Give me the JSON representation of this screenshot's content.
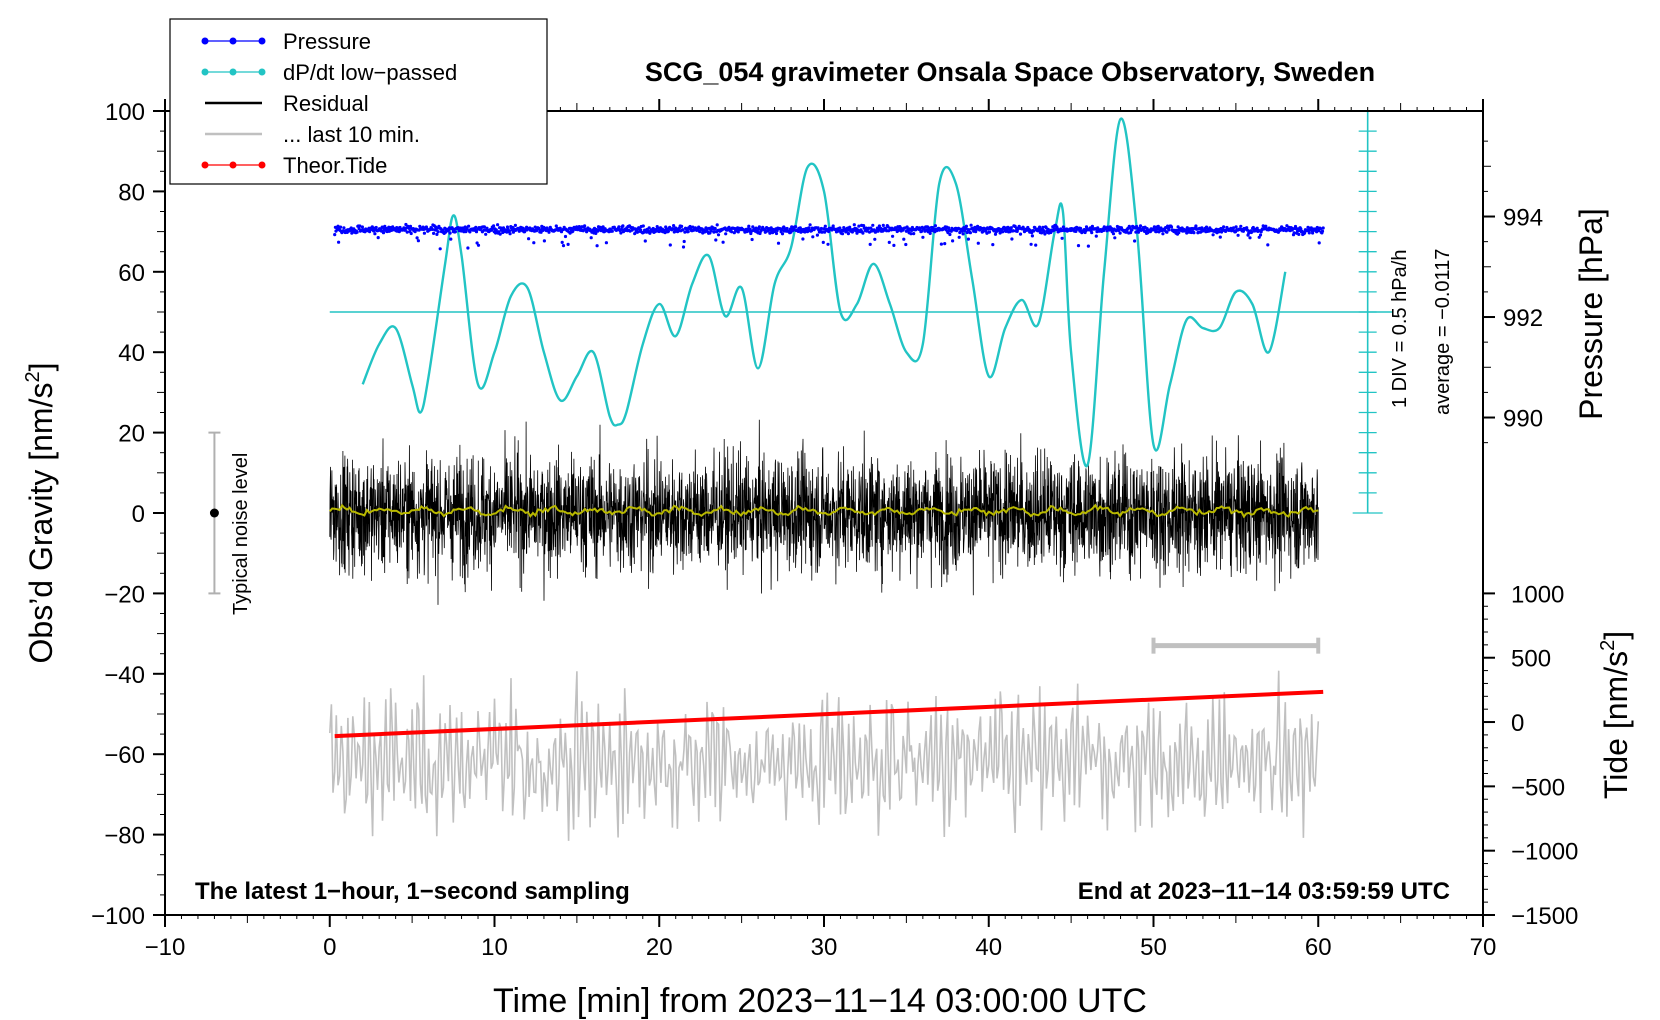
{
  "chart_data": {
    "type": "line",
    "title": "SCG_054 gravimeter Onsala Space Observatory, Sweden",
    "xlabel": "Time [min] from 2023−11−14 03:00:00 UTC",
    "ylabel_main": "Obs’d Gravity [nm/s",
    "ylabel_main_sup": "2",
    "ylabel_main_tail": "]",
    "ylabel_pressure": "Pressure [hPa]",
    "ylabel_tide": "Tide [nm/s",
    "ylabel_tide_sup": "2",
    "ylabel_tide_tail": "]",
    "xlim": [
      -10,
      70
    ],
    "ylim": [
      -100,
      100
    ],
    "x_ticks": [
      {
        "v": -10,
        "label": "−10"
      },
      {
        "v": 0,
        "label": "0"
      },
      {
        "v": 10,
        "label": "10"
      },
      {
        "v": 20,
        "label": "20"
      },
      {
        "v": 30,
        "label": "30"
      },
      {
        "v": 40,
        "label": "40"
      },
      {
        "v": 50,
        "label": "50"
      },
      {
        "v": 60,
        "label": "60"
      },
      {
        "v": 70,
        "label": "70"
      }
    ],
    "y_ticks": [
      {
        "v": 100,
        "label": "100"
      },
      {
        "v": 80,
        "label": "80"
      },
      {
        "v": 60,
        "label": "60"
      },
      {
        "v": 40,
        "label": "40"
      },
      {
        "v": 20,
        "label": "20"
      },
      {
        "v": 0,
        "label": "0"
      },
      {
        "v": -20,
        "label": "−20"
      },
      {
        "v": -40,
        "label": "−40"
      },
      {
        "v": -60,
        "label": "−60"
      },
      {
        "v": -80,
        "label": "−80"
      },
      {
        "v": -100,
        "label": "−100"
      }
    ],
    "pressure_ticks": [
      {
        "v": 994,
        "label": "994"
      },
      {
        "v": 992,
        "label": "992"
      },
      {
        "v": 990,
        "label": "990"
      }
    ],
    "pressure_axis": {
      "value_at_y60": 992.9,
      "hpa_per_y_unit": 0.08
    },
    "tide_ticks": [
      {
        "v": 1000,
        "label": "1000"
      },
      {
        "v": 500,
        "label": "500"
      },
      {
        "v": 0,
        "label": "0"
      },
      {
        "v": -500,
        "label": "−500"
      },
      {
        "v": -1000,
        "label": "−1000"
      },
      {
        "v": -1500,
        "label": "−1500"
      }
    ],
    "tide_axis": {
      "value_at_ym100": -1500,
      "value_at_ym20": 1000
    },
    "legend": {
      "position": "top-left",
      "entries": [
        {
          "label": "Pressure",
          "color": "#0000ff",
          "marker": true
        },
        {
          "label": "dP/dt low−passed",
          "color": "#22c4c4",
          "marker": true
        },
        {
          "label": "Residual",
          "color": "#000000",
          "marker": false
        },
        {
          "label": "... last 10 min.",
          "color": "#c0c0c0",
          "marker": false
        },
        {
          "label": "Theor.Tide",
          "color": "#ff0000",
          "marker": true
        }
      ]
    },
    "annotations": {
      "footer_left": "The latest 1−hour, 1−second sampling",
      "footer_right": "End at 2023−11−14 03:59:59 UTC",
      "noise_label": "Typical noise level",
      "div_label": "1 DIV = 0.5 hPa/h",
      "average_label": "average = −0.0117"
    },
    "noise_bar": {
      "x": -7,
      "center": 0,
      "half_range": 20
    },
    "dpdt_ruler": {
      "x": 63,
      "ymin": 0,
      "ymax": 100,
      "minor_step": 5,
      "reference_y": 50
    },
    "last10_bar": {
      "x_start": 50,
      "x_end": 60,
      "y": -33
    },
    "series": [
      {
        "name": "Pressure",
        "color": "#0000ff",
        "x_range": [
          0.3,
          60.3
        ],
        "baseline_y": 70.5,
        "scatter_y": 1.3,
        "style": "dots"
      },
      {
        "name": "dP/dt low−passed",
        "color": "#22c4c4",
        "style": "line",
        "x": [
          2,
          3,
          4,
          5,
          5.5,
          6,
          7,
          7.5,
          8,
          9,
          10,
          11,
          12,
          13,
          14,
          15,
          16,
          17,
          17.5,
          18,
          19,
          20,
          21,
          22,
          23,
          24,
          25,
          26,
          27,
          28,
          29,
          30,
          31,
          32,
          33,
          34,
          35,
          36,
          37,
          38,
          39,
          40,
          41,
          42,
          43,
          44,
          44.5,
          45,
          46,
          47,
          48,
          49,
          50,
          51,
          52,
          53,
          54,
          55,
          56,
          57,
          58
        ],
        "y": [
          32,
          42,
          46,
          32,
          25,
          34,
          62,
          74,
          64,
          32,
          40,
          54,
          56,
          40,
          28,
          34,
          40,
          24,
          22,
          25,
          42,
          52,
          44,
          57,
          64,
          49,
          56,
          36,
          57,
          66,
          86,
          80,
          50,
          52,
          62,
          52,
          40,
          42,
          82,
          82,
          58,
          34,
          46,
          53,
          47,
          70,
          75,
          40,
          12,
          60,
          98,
          70,
          17,
          32,
          48,
          46,
          46,
          55,
          52,
          40,
          60
        ]
      },
      {
        "name": "Residual",
        "color": "#000000",
        "style": "noise",
        "x_range": [
          0,
          60
        ],
        "amplitude": 12
      },
      {
        "name": "Residual smoothed",
        "color": "#b8b800",
        "style": "line",
        "x_range": [
          0,
          60
        ],
        "level": 0.5
      },
      {
        "name": "... last 10 min.",
        "color": "#c0c0c0",
        "style": "noise",
        "x_range": [
          0,
          60
        ],
        "center": -62,
        "amplitude": 14
      },
      {
        "name": "Theor.Tide",
        "color": "#ff0000",
        "style": "line",
        "x": [
          0.3,
          60.3
        ],
        "y": [
          -55.5,
          -44.5
        ]
      }
    ]
  }
}
